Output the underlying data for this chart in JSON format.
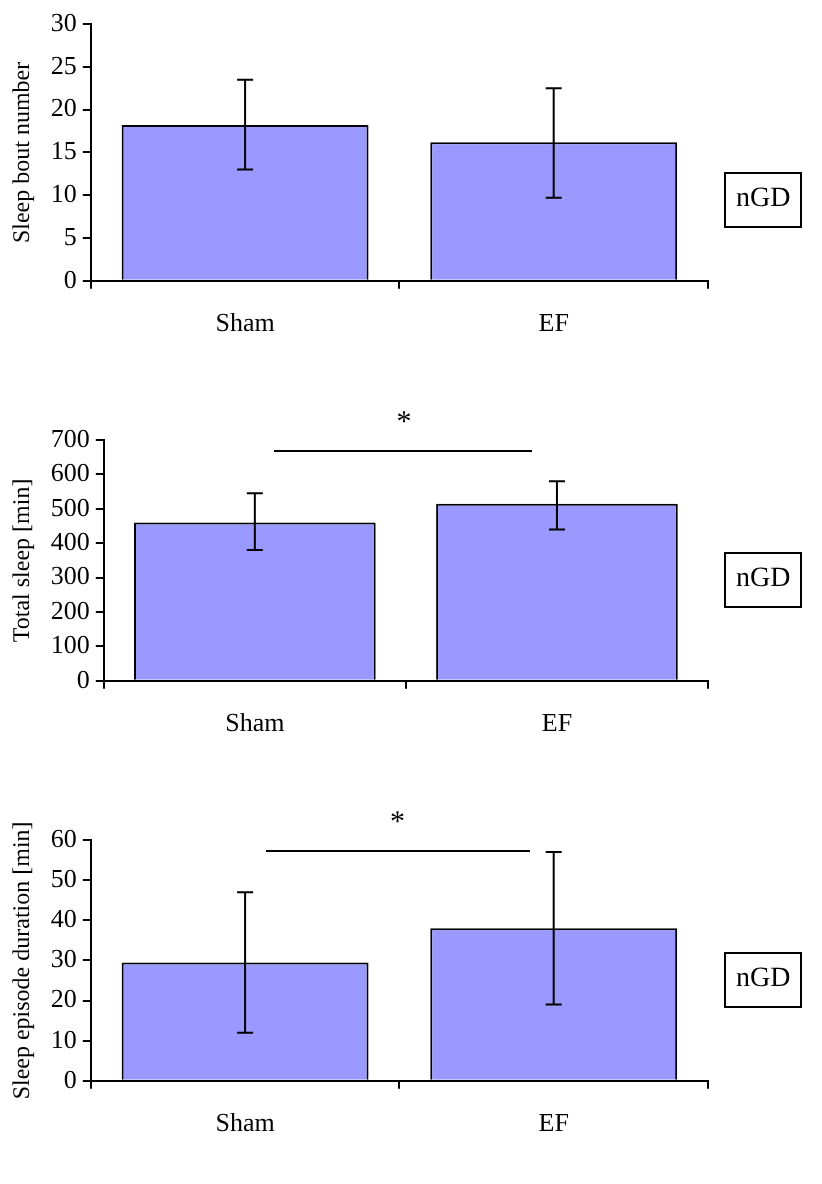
{
  "chart_data": [
    {
      "type": "bar",
      "ylabel": "Sleep bout number",
      "categories": [
        "Sham",
        "EF"
      ],
      "values": [
        18.2,
        16.2
      ],
      "errors": [
        [
          13,
          23.5
        ],
        [
          9.7,
          22.5
        ]
      ],
      "color": "#9999ff",
      "ylim": [
        0,
        30
      ],
      "yticks": [
        0,
        5,
        10,
        15,
        20,
        25,
        30
      ],
      "grid": false,
      "annotations": [
        "nGD"
      ]
    },
    {
      "type": "bar",
      "ylabel": "Total sleep [min]",
      "categories": [
        "Sham",
        "EF"
      ],
      "values": [
        460,
        515
      ],
      "errors": [
        [
          380,
          545
        ],
        [
          440,
          580
        ]
      ],
      "color": "#9999ff",
      "ylim": [
        0,
        700
      ],
      "yticks": [
        0,
        100,
        200,
        300,
        400,
        500,
        600,
        700
      ],
      "grid": false,
      "annotations": [
        "*",
        "nGD"
      ]
    },
    {
      "type": "bar",
      "ylabel": "Sleep episode duration [min]",
      "categories": [
        "Sham",
        "EF"
      ],
      "values": [
        29.5,
        38
      ],
      "errors": [
        [
          12,
          47
        ],
        [
          19,
          57
        ]
      ],
      "color": "#9999ff",
      "ylim": [
        0,
        60
      ],
      "yticks": [
        0,
        10,
        20,
        30,
        40,
        50,
        60
      ],
      "grid": false,
      "annotations": [
        "*",
        "nGD"
      ]
    }
  ]
}
